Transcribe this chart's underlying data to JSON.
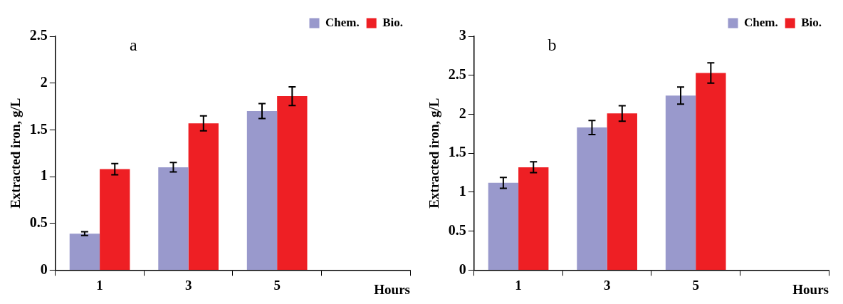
{
  "chart_data": [
    {
      "type": "bar",
      "annotations": [
        "a"
      ],
      "xlabel": "Hours",
      "ylabel": "Extracted iron, g/L",
      "categories": [
        "1",
        "3",
        "5",
        null
      ],
      "ylim": [
        0,
        2.5
      ],
      "yticks": [
        0,
        0.5,
        1,
        1.5,
        2,
        2.5
      ],
      "legend": "top right",
      "series": [
        {
          "name": "Chem.",
          "color": "#9999cc",
          "values": [
            0.39,
            1.1,
            1.7,
            null
          ],
          "errors": [
            0.02,
            0.05,
            0.08,
            null
          ]
        },
        {
          "name": "Bio.",
          "color": "#ee1f24",
          "values": [
            1.08,
            1.57,
            1.86,
            null
          ],
          "errors": [
            0.06,
            0.08,
            0.1,
            null
          ]
        }
      ]
    },
    {
      "type": "bar",
      "annotations": [
        "b"
      ],
      "xlabel": "Hours",
      "ylabel": "Extracted iron, g/L",
      "categories": [
        "1",
        "3",
        "5",
        null
      ],
      "ylim": [
        0,
        3
      ],
      "yticks": [
        0,
        0.5,
        1,
        1.5,
        2,
        2.5,
        3
      ],
      "legend": "top right",
      "series": [
        {
          "name": "Chem.",
          "color": "#9999cc",
          "values": [
            1.12,
            1.83,
            2.24,
            null
          ],
          "errors": [
            0.07,
            0.09,
            0.11,
            null
          ]
        },
        {
          "name": "Bio.",
          "color": "#ee1f24",
          "values": [
            1.32,
            2.01,
            2.53,
            null
          ],
          "errors": [
            0.07,
            0.1,
            0.13,
            null
          ]
        }
      ]
    }
  ]
}
